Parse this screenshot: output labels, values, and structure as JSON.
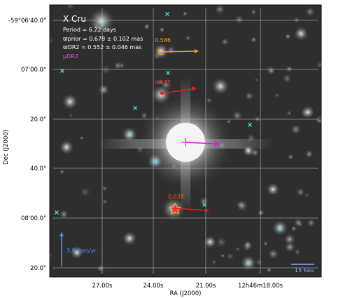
{
  "chart_data": {
    "type": "scatter",
    "title": "X Cru",
    "xlabel": "RA (J2000)",
    "ylabel": "Dec (J2000)",
    "x_ticks": [
      "27.00s",
      "24.00s",
      "21.00s",
      "12h46m18.00s"
    ],
    "y_ticks": [
      "-59°06'40.0\"",
      "07'00.0\"",
      "20.0\"",
      "40.0\"",
      "08'00.0\"",
      "20.0\""
    ],
    "grid": true,
    "legend": {
      "placement": "top-left",
      "lines": [
        "Period =    6.22 days",
        "ϖprior = 0.678 ± 0.102 mas",
        "ϖDR2 = 0.552 ± 0.046 mas"
      ],
      "mu_label": "μDR2"
    },
    "annotations": [
      {
        "label": "0.586",
        "color": "#f0a020"
      },
      {
        "label": "0.677",
        "color": "#ff4020"
      },
      {
        "label": "0.638",
        "color": "#ff5020"
      }
    ],
    "scalebar_pm": "3.0 mas/yr",
    "scalebar_distance": "15 kau",
    "colors": {
      "target_pm": "#ff00ff",
      "star1": "#f0a020",
      "star2": "#e02020",
      "star3": "#ff3030",
      "field_markers": "#40e0d0",
      "scalebar": "#5090ff"
    }
  }
}
